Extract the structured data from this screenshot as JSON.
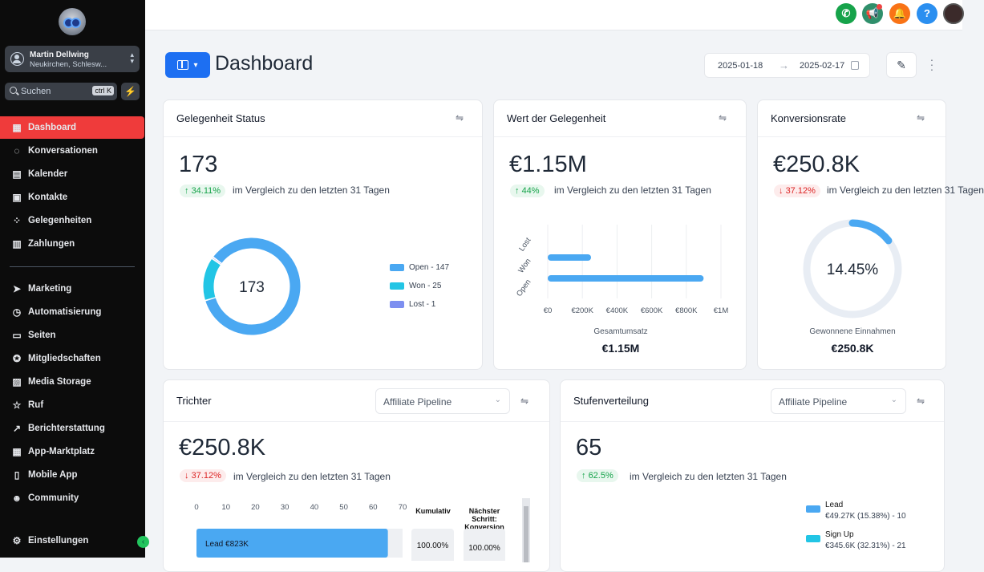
{
  "sidebar": {
    "account": {
      "name": "Martin Dellwing",
      "location": "Neukirchen, Schlesw..."
    },
    "search": {
      "placeholder": "Suchen",
      "shortcut": "ctrl K"
    },
    "items": [
      {
        "label": "Dashboard",
        "icon": "dashboard-icon",
        "active": true
      },
      {
        "label": "Konversationen",
        "icon": "chat-icon"
      },
      {
        "label": "Kalender",
        "icon": "calendar-icon"
      },
      {
        "label": "Kontakte",
        "icon": "contacts-icon"
      },
      {
        "label": "Gelegenheiten",
        "icon": "opportunities-icon"
      },
      {
        "label": "Zahlungen",
        "icon": "payments-icon"
      },
      {
        "label": "Marketing",
        "icon": "send-icon"
      },
      {
        "label": "Automatisierung",
        "icon": "automation-icon"
      },
      {
        "label": "Seiten",
        "icon": "pages-icon"
      },
      {
        "label": "Mitgliedschaften",
        "icon": "memberships-icon"
      },
      {
        "label": "Media Storage",
        "icon": "media-icon"
      },
      {
        "label": "Ruf",
        "icon": "star-icon"
      },
      {
        "label": "Berichterstattung",
        "icon": "trend-icon"
      },
      {
        "label": "App-Marktplatz",
        "icon": "apps-icon"
      },
      {
        "label": "Mobile App",
        "icon": "mobile-icon"
      },
      {
        "label": "Community",
        "icon": "community-icon"
      },
      {
        "label": "Einstellungen",
        "icon": "gear-icon"
      }
    ]
  },
  "header": {
    "title": "Dashboard",
    "date_from": "2025-01-18",
    "date_to": "2025-02-17"
  },
  "topbar": {
    "colors": {
      "phone": "#16a34a",
      "megaphone": "#2f8f6b",
      "bell": "#f97316",
      "help": "#2b8ff0"
    },
    "help_label": "?"
  },
  "cards": {
    "status": {
      "title": "Gelegenheit Status",
      "value": "173",
      "change": "34.11%",
      "compare": "im Vergleich zu den letzten 31 Tagen",
      "donut_center": "173",
      "legend": [
        "Open - 147",
        "Won - 25",
        "Lost - 1"
      ]
    },
    "value": {
      "title": "Wert der Gelegenheit",
      "value": "€1.15M",
      "change": "44%",
      "compare": "im Vergleich zu den letzten 31 Tagen",
      "xlabel": "Gesamtumsatz",
      "total": "€1.15M"
    },
    "conversion": {
      "title": "Konversionsrate",
      "value": "€250.8K",
      "change": "37.12%",
      "compare": "im Vergleich zu den letzten 31 Tagen",
      "gauge_label": "14.45%",
      "caption": "Gewonnene Einnahmen",
      "caption_value": "€250.8K"
    },
    "funnel": {
      "title": "Trichter",
      "pipeline": "Affiliate Pipeline",
      "value": "€250.8K",
      "change": "37.12%",
      "compare": "im Vergleich zu den letzten 31 Tagen",
      "col_cumulative": "Kumulativ",
      "col_next": "Nächster Schritt: Konversion",
      "cumulative_value": "100.00%",
      "next_value": "100.00%",
      "bar_label": "Lead",
      "bar_value": "€823K"
    },
    "stages": {
      "title": "Stufenverteilung",
      "pipeline": "Affiliate Pipeline",
      "value": "65",
      "change": "62.5%",
      "compare": "im Vergleich zu den letzten 31 Tagen",
      "legend": [
        {
          "name": "Lead",
          "detail": "€49.27K (15.38%) - 10",
          "color": "#4aa8f2"
        },
        {
          "name": "Sign Up",
          "detail": "€345.6K (32.31%) - 21",
          "color": "#22c5e5"
        }
      ]
    }
  },
  "chart_data": [
    {
      "type": "pie",
      "title": "",
      "categories": [
        "Open",
        "Won",
        "Lost"
      ],
      "values": [
        147,
        25,
        1
      ],
      "colors": [
        "#4aa8f2",
        "#22c5e5",
        "#7d8ff0"
      ]
    },
    {
      "type": "bar",
      "orientation": "horizontal",
      "categories": [
        "Lost",
        "Won",
        "Open"
      ],
      "values": [
        0,
        250000,
        900000
      ],
      "xlabel": "Gesamtumsatz",
      "xlim": [
        0,
        1000000
      ],
      "xticks": [
        "€0",
        "€200K",
        "€400K",
        "€600K",
        "€800K",
        "€1M"
      ],
      "color": "#4aa8f2"
    },
    {
      "type": "pie",
      "title": "",
      "categories": [
        "Gewonnene Einnahmen",
        "Rest"
      ],
      "values": [
        14.45,
        85.55
      ],
      "colors": [
        "#4aa8f2",
        "#e8edf4"
      ]
    },
    {
      "type": "bar",
      "orientation": "horizontal",
      "categories": [
        "Lead"
      ],
      "values": [
        65
      ],
      "xticks": [
        "0",
        "10",
        "20",
        "30",
        "40",
        "50",
        "60",
        "70"
      ],
      "xlim": [
        0,
        70
      ],
      "color": "#4aa8f2"
    }
  ]
}
